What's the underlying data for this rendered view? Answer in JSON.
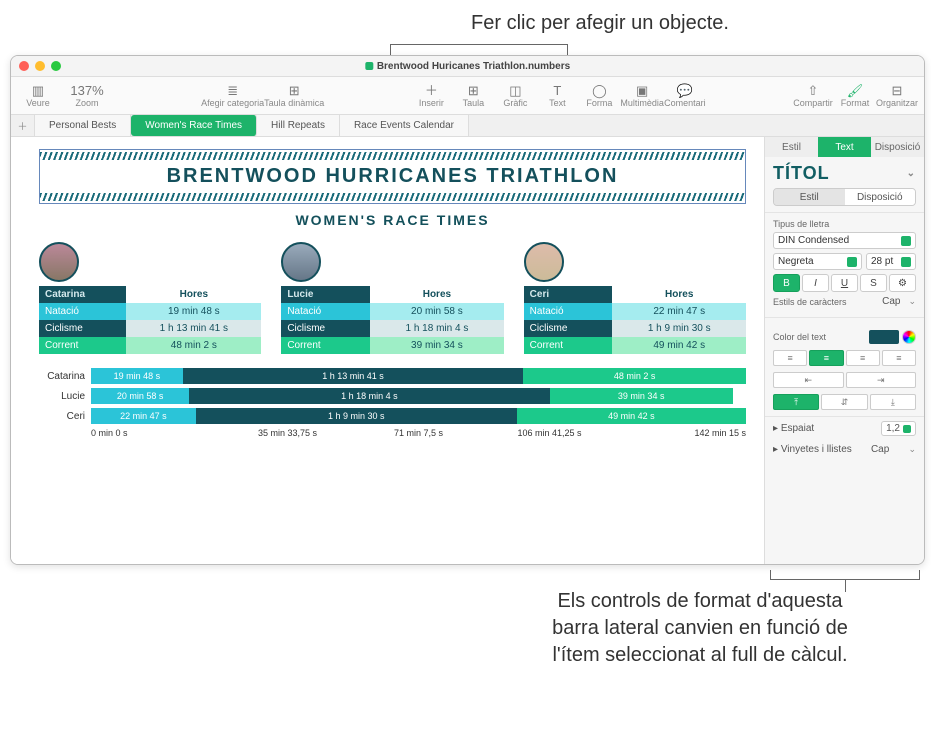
{
  "annotations": {
    "top": "Fer clic per afegir un objecte.",
    "bottom": "Els controls de format d'aquesta barra lateral canvien en funció de l'ítem seleccionat al full de càlcul."
  },
  "window": {
    "title": "Brentwood Huricanes Triathlon.numbers"
  },
  "toolbar": {
    "veure": "Veure",
    "zoom": "Zoom",
    "zoom_value": "137%",
    "afegir_categoria": "Afegir categoria",
    "taula_dinamica": "Taula dinàmica",
    "inserir": "Inserir",
    "taula": "Taula",
    "grafic": "Gràfic",
    "text": "Text",
    "forma": "Forma",
    "multimedia": "Multimèdia",
    "comentari": "Comentari",
    "compartir": "Compartir",
    "format": "Format",
    "organitzar": "Organitzar"
  },
  "tabs": {
    "t1": "Personal Bests",
    "t2": "Women's Race Times",
    "t3": "Hill Repeats",
    "t4": "Race Events Calendar"
  },
  "doc": {
    "title": "BRENTWOOD HURRICANES TRIATHLON",
    "subtitle": "WOMEN'S RACE TIMES"
  },
  "columns": {
    "activity": "",
    "hores": "Hores"
  },
  "activities": {
    "natacio": "Natació",
    "ciclisme": "Ciclisme",
    "corrent": "Corrent"
  },
  "athletes": [
    {
      "name": "Catarina",
      "nat": "19 min 48 s",
      "cic": "1 h 13 min 41 s",
      "cor": "48 min 2 s",
      "nat_w": 14,
      "cic_w": 52,
      "cor_w": 34
    },
    {
      "name": "Lucie",
      "nat": "20 min 58 s",
      "cic": "1 h 18 min 4 s",
      "cor": "39 min 34 s",
      "nat_w": 15,
      "cic_w": 55,
      "cor_w": 28
    },
    {
      "name": "Ceri",
      "nat": "22 min 47 s",
      "cic": "1 h 9 min 30 s",
      "cor": "49 min 42 s",
      "nat_w": 16,
      "cic_w": 49,
      "cor_w": 35
    }
  ],
  "axis": [
    "0 min 0 s",
    "35 min 33,75 s",
    "71 min 7,5 s",
    "106 min 41,25 s",
    "142 min 15 s"
  ],
  "inspector": {
    "tab_estil": "Estil",
    "tab_text": "Text",
    "tab_disposicio": "Disposició",
    "titol": "TÍTOL",
    "seg_estil": "Estil",
    "seg_disposicio": "Disposició",
    "tipus_lletra": "Tipus de lletra",
    "font_family": "DIN Condensed",
    "font_style": "Negreta",
    "font_size": "28 pt",
    "b": "B",
    "i": "I",
    "u": "U",
    "s": "S",
    "estils_caracters": "Estils de caràcters",
    "cap": "Cap",
    "color_text": "Color del text",
    "espaiat": "Espaiat",
    "espaiat_val": "1,2",
    "vinyetes": "Vinyetes i llistes"
  },
  "colors": {
    "accent": "#1db36a",
    "teal_dark": "#14505c",
    "cyan": "#2bc4d8",
    "green": "#1cc98b"
  }
}
